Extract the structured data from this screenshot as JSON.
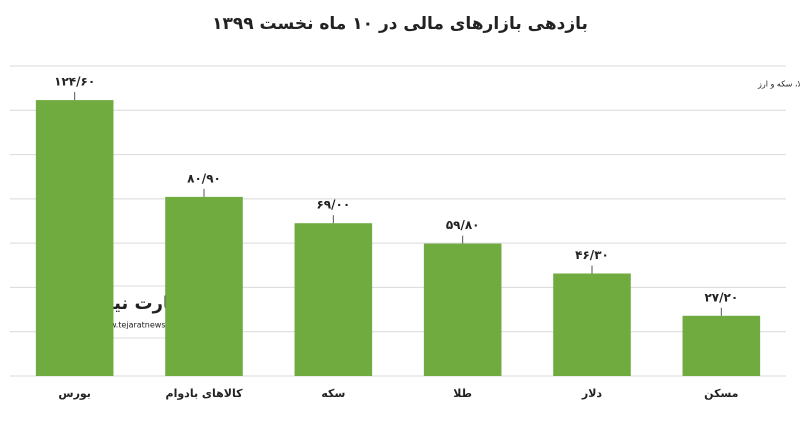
{
  "chart_data": {
    "type": "bar",
    "title": "بازدهی بازارهای مالی در ۱۰ ماه نخست ۱۳۹۹",
    "source": "منبع: صرافی ملی، سازمان بورس و شبکه اطلاع رسانی طلا، سکه و ارز",
    "categories": [
      "بورس",
      "کالاهای بادوام",
      "سکه",
      "طلا",
      "دلار",
      "مسکن"
    ],
    "values": [
      124.6,
      80.9,
      69.0,
      59.8,
      46.3,
      27.2
    ],
    "value_labels": [
      "۱۲۴/۶۰",
      "۸۰/۹۰",
      "۶۹/۰۰",
      "۵۹/۸۰",
      "۴۶/۳۰",
      "۲۷/۲۰"
    ],
    "color": "#6fab3f",
    "ylim": [
      0,
      140
    ],
    "yticks": [
      0,
      20,
      40,
      60,
      80,
      100,
      120,
      140
    ],
    "grid": true
  },
  "logo": {
    "name": "تجارت نیوز",
    "url": "www.tejaratnews.com"
  }
}
